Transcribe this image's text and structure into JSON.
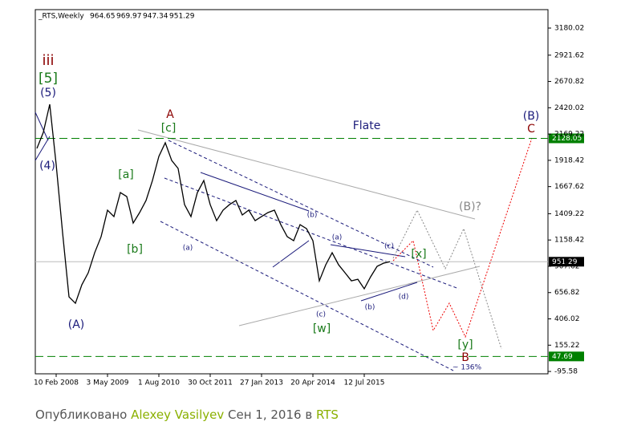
{
  "chart_data": {
    "type": "line",
    "title": "_RTS,Weekly",
    "header_values": [
      964.65,
      969.97,
      947.34,
      951.29
    ],
    "categories": [
      null,
      null,
      null,
      "10 Feb 2008",
      null,
      null,
      null,
      null,
      null,
      null,
      null,
      "3 May 2009",
      null,
      null,
      null,
      null,
      null,
      null,
      null,
      "1 Aug 2010",
      null,
      null,
      null,
      null,
      null,
      null,
      null,
      "30 Oct 2011",
      null,
      null,
      null,
      null,
      null,
      null,
      null,
      "27 Jan 2013",
      null,
      null,
      null,
      null,
      null,
      null,
      null,
      "20 Apr 2014",
      null,
      null,
      null,
      null,
      null,
      null,
      null,
      "12 Jul 2015",
      null,
      null,
      null,
      null
    ],
    "series": [
      {
        "color": "#000000",
        "values": [
          2032,
          2185,
          2453,
          1879,
          1228,
          616,
          555,
          731,
          846,
          1037,
          1190,
          1443,
          1382,
          1611,
          1573,
          1320,
          1420,
          1535,
          1726,
          1956,
          2086,
          1917,
          1841,
          1496,
          1382,
          1611,
          1726,
          1496,
          1343,
          1443,
          1496,
          1535,
          1397,
          1443,
          1343,
          1382,
          1420,
          1443,
          1305,
          1190,
          1152,
          1305,
          1267,
          1152,
          769,
          922,
          1037,
          922,
          846,
          769,
          784,
          693,
          808,
          907,
          937,
          951.29
        ]
      }
    ],
    "ylim": [
      -118,
      3356
    ],
    "yticks": [
      3180.02,
      2921.62,
      2670.82,
      2420.02,
      2169.22,
      1918.42,
      1667.62,
      1409.22,
      1158.42,
      907.62,
      656.82,
      406.02,
      155.22,
      -95.58
    ],
    "levels": [
      {
        "value": 2128.05,
        "color": "#008000"
      },
      {
        "value": 47.69,
        "color": "#008000"
      }
    ],
    "last_price": {
      "value": 951.29,
      "color": "#000000"
    },
    "annotations": [
      "iii",
      "[5]",
      "(5)",
      "(4)",
      "(A)",
      "A",
      "[c]",
      "[a]",
      "[b]",
      "(a)",
      "Flate",
      "(b)",
      "(a)",
      "(c)",
      "[x]",
      "(c)",
      "[w]",
      "(b)",
      "(d)",
      "(B)?",
      "(B)",
      "C",
      "[y]",
      "B",
      "~ 136%"
    ]
  },
  "footer": {
    "prefix": "Опубликовано",
    "author": "Alexey Vasilyev",
    "date": "Сен 1, 2016 в",
    "link": "RTS"
  }
}
